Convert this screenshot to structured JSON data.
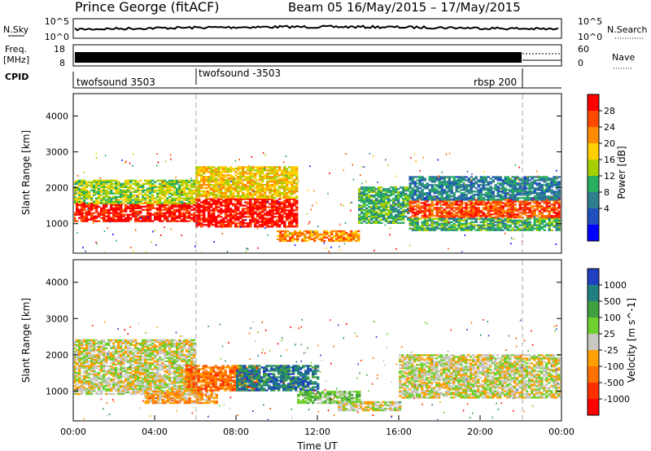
{
  "header": {
    "station": "Prince George (fitACF)",
    "beam_dates": "Beam 05  16/May/2015 – 17/May/2015"
  },
  "panels": {
    "nsky": {
      "left_label": "N.Sky",
      "right_label": "N.Search",
      "left_ticks": [
        "10^5",
        "10^0"
      ],
      "right_ticks": [
        "10^5",
        "10^0"
      ]
    },
    "freq": {
      "left_label_1": "Freq.",
      "left_label_2": "[MHz]",
      "left_ticks": [
        "18",
        "8"
      ],
      "right_ticks": [
        "60",
        "0"
      ],
      "right_label": "Nave"
    },
    "cpid": {
      "label": "CPID",
      "segments": [
        {
          "text": "twofsound 3503",
          "start_hour": 0
        },
        {
          "text": "twofsound -3503",
          "start_hour": 6
        },
        {
          "text": "rbsp 200",
          "start_hour": 22
        }
      ]
    }
  },
  "chart_data": [
    {
      "type": "heatmap",
      "name": "power",
      "ylabel": "Slant Range [km]",
      "ylim": [
        200,
        4600
      ],
      "yticks": [
        1000,
        2000,
        3000,
        4000
      ],
      "xlim_hours": [
        0,
        24
      ],
      "colorbar": {
        "label": "Power [dB]",
        "ticks": [
          "28",
          "24",
          "20",
          "16",
          "12",
          "8",
          "4"
        ],
        "colors": [
          "#ff0000",
          "#ff4a00",
          "#ff8c00",
          "#ffd000",
          "#a8d000",
          "#28b060",
          "#2e7e8e",
          "#2050c0",
          "#0000ff"
        ]
      },
      "bands": [
        {
          "t0": 0,
          "t1": 6,
          "r0": 1050,
          "r1": 1550,
          "level": 0
        },
        {
          "t0": 0,
          "t1": 6,
          "r0": 1550,
          "r1": 2200,
          "level": 4
        },
        {
          "t0": 6,
          "t1": 11,
          "r0": 900,
          "r1": 1700,
          "level": 0
        },
        {
          "t0": 6,
          "t1": 11,
          "r0": 1700,
          "r1": 2600,
          "level": 3
        },
        {
          "t0": 10,
          "t1": 14,
          "r0": 500,
          "r1": 800,
          "level": 2
        },
        {
          "t0": 14,
          "t1": 16.5,
          "r0": 1000,
          "r1": 2000,
          "level": 5
        },
        {
          "t0": 16.5,
          "t1": 24,
          "r0": 1150,
          "r1": 1650,
          "level": 1
        },
        {
          "t0": 16.5,
          "t1": 24,
          "r0": 1650,
          "r1": 2300,
          "level": 6
        },
        {
          "t0": 16.5,
          "t1": 24,
          "r0": 800,
          "r1": 1150,
          "level": 5
        }
      ]
    },
    {
      "type": "heatmap",
      "name": "velocity",
      "ylabel": "Slant Range [km]",
      "xlabel": "Time UT",
      "ylim": [
        200,
        4600
      ],
      "yticks": [
        1000,
        2000,
        3000,
        4000
      ],
      "xticks": [
        "00:00",
        "04:00",
        "08:00",
        "12:00",
        "16:00",
        "20:00",
        "00:00"
      ],
      "xlim_hours": [
        0,
        24
      ],
      "colorbar": {
        "label": "Velocity [m s^-1]",
        "ticks": [
          "1000",
          "500",
          "100",
          "25",
          "-25",
          "-100",
          "-500",
          "-1000"
        ],
        "colors": [
          "#2040c0",
          "#208080",
          "#40a040",
          "#70d030",
          "#c8c8c0",
          "#ffa000",
          "#ff7000",
          "#ff3000",
          "#ff0000"
        ]
      },
      "bands": [
        {
          "t0": 0,
          "t1": 6,
          "r0": 900,
          "r1": 2400,
          "level": 4
        },
        {
          "t0": 3.5,
          "t1": 7,
          "r0": 650,
          "r1": 1000,
          "level": 5
        },
        {
          "t0": 5.5,
          "t1": 9,
          "r0": 1000,
          "r1": 1700,
          "level": 6
        },
        {
          "t0": 8,
          "t1": 12,
          "r0": 1000,
          "r1": 1700,
          "level": 1
        },
        {
          "t0": 11,
          "t1": 14,
          "r0": 650,
          "r1": 1000,
          "level": 3
        },
        {
          "t0": 13,
          "t1": 16,
          "r0": 450,
          "r1": 700,
          "level": 4
        },
        {
          "t0": 16,
          "t1": 24,
          "r0": 800,
          "r1": 2000,
          "level": 4
        }
      ]
    }
  ]
}
